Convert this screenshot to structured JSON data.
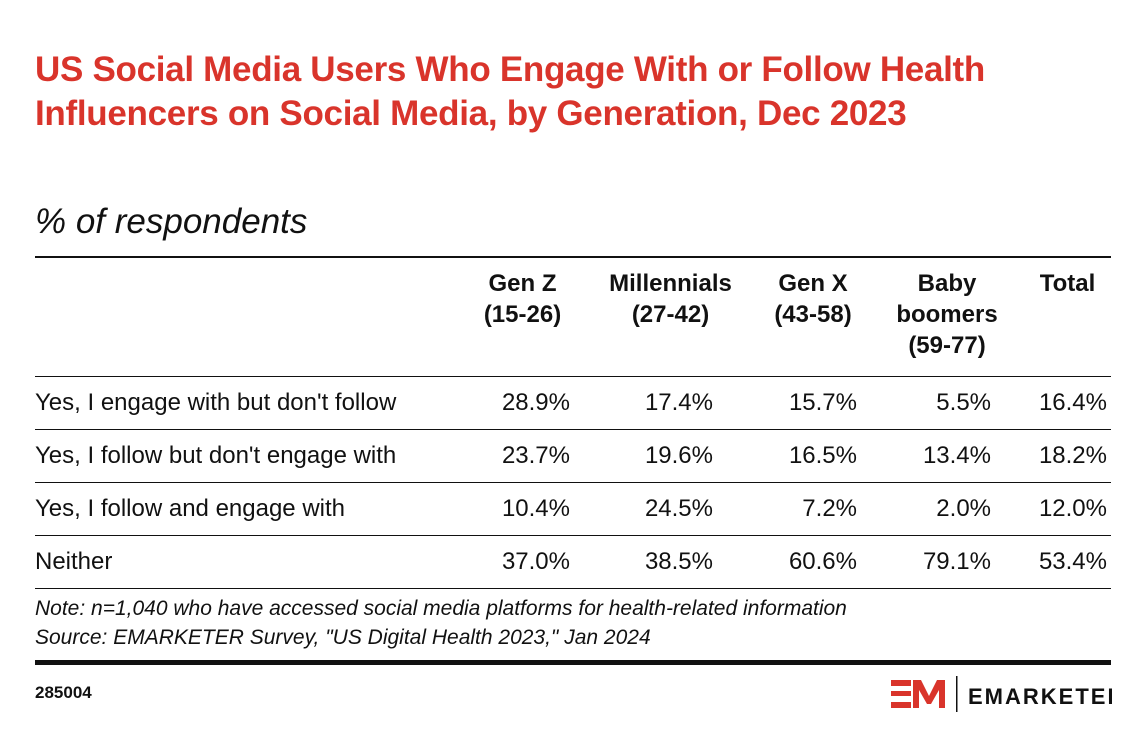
{
  "chart_data": {
    "type": "table",
    "title": "US Social Media Users Who Engage With or Follow Health Influencers on Social Media, by Generation, Dec 2023",
    "subtitle": "% of respondents",
    "columns": [
      "Gen Z\n(15-26)",
      "Millennials\n(27-42)",
      "Gen X\n(43-58)",
      "Baby\nboomers\n(59-77)",
      "Total"
    ],
    "rows": [
      {
        "label": "Yes, I engage with but don't follow",
        "values": [
          "28.9%",
          "17.4%",
          "15.7%",
          "5.5%",
          "16.4%"
        ]
      },
      {
        "label": "Yes, I follow but don't engage with",
        "values": [
          "23.7%",
          "19.6%",
          "16.5%",
          "13.4%",
          "18.2%"
        ]
      },
      {
        "label": "Yes, I follow and engage with",
        "values": [
          "10.4%",
          "24.5%",
          "7.2%",
          "2.0%",
          "12.0%"
        ]
      },
      {
        "label": "Neither",
        "values": [
          "37.0%",
          "38.5%",
          "60.6%",
          "79.1%",
          "53.4%"
        ]
      }
    ],
    "note": "Note: n=1,040 who have accessed social media platforms for health-related information",
    "source": "Source: EMARKETER Survey, \"US Digital Health 2023,\" Jan 2024",
    "chart_id": "285004",
    "brand": "EMARKETER",
    "accent_color": "#d9342b"
  }
}
